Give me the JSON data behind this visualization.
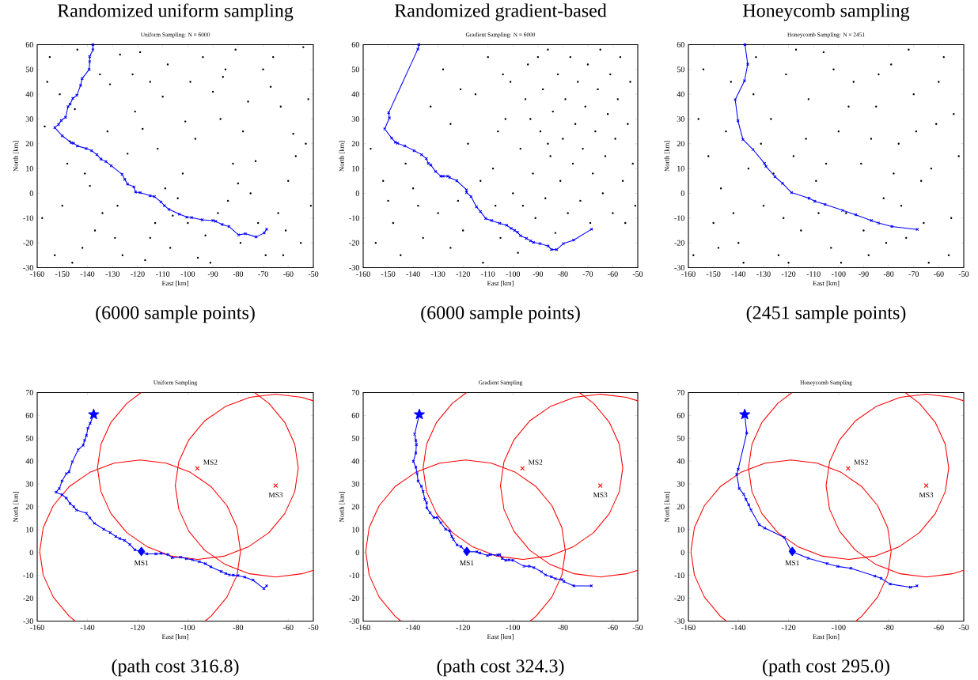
{
  "chart_data": [
    {
      "type": "scatter",
      "title": "Randomized uniform sampling",
      "subtitle": "Uniform Sampling: N = 6000",
      "xlabel": "East [km]",
      "ylabel": "North [km]",
      "xlim": [
        -160,
        -50
      ],
      "ylim": [
        -30,
        60
      ],
      "xticks": [
        -160,
        -150,
        -140,
        -130,
        -120,
        -110,
        -100,
        -90,
        -80,
        -70,
        -60,
        -50
      ],
      "yticks": [
        -30,
        -20,
        -10,
        0,
        10,
        20,
        30,
        40,
        50,
        60
      ],
      "annotations": [
        "(6000 sample points)"
      ],
      "series": [
        {
          "marker": "circle",
          "color": "#000000",
          "x": [
            -155,
            -148,
            -142,
            -135,
            -128,
            -121,
            -115,
            -108,
            -102,
            -96,
            -90,
            -84,
            -78,
            -72,
            -66,
            -60,
            -55,
            -52,
            -158,
            -151,
            -146,
            -139,
            -132,
            -126,
            -119,
            -112,
            -106,
            -99,
            -93,
            -87,
            -81,
            -75,
            -69,
            -63,
            -57,
            -51,
            -157,
            -150,
            -144,
            -137,
            -131,
            -124,
            -117,
            -110,
            -104,
            -97,
            -91,
            -85,
            -79,
            -73,
            -67,
            -61,
            -54,
            -153,
            -141,
            -129,
            -122,
            -113,
            -101,
            -94,
            -82,
            -76,
            -64,
            -58,
            -156,
            -134,
            -118,
            -107,
            -88,
            -70,
            -53,
            -147,
            -127,
            -109,
            -86,
            -62,
            -100,
            -145,
            -80,
            -115
          ],
          "values": [
            55,
            12,
            -22,
            48,
            -5,
            33,
            -18,
            52,
            8,
            -26,
            41,
            -3,
            25,
            -12,
            55,
            5,
            -20,
            38,
            -10,
            40,
            -28,
            3,
            25,
            -25,
            57,
            18,
            -9,
            45,
            -17,
            30,
            58,
            0,
            -25,
            35,
            15,
            -5,
            27,
            -5,
            58,
            -15,
            44,
            16,
            -27,
            39,
            -2,
            22,
            -28,
            50,
            -20,
            13,
            43,
            -15,
            59,
            -25,
            8,
            -18,
            48,
            -12,
            29,
            55,
            12,
            37,
            -8,
            24,
            45,
            -8,
            26,
            -22,
            -8,
            50,
            20,
            21,
            56,
            2,
            47,
            -25,
            -12,
            34,
            4,
            45
          ]
        },
        {
          "type": "line",
          "marker": "cross",
          "color": "#0000ff",
          "x": [
            -137.8,
            -137.8,
            -139.1,
            -139.1,
            -139.3,
            -142.1,
            -142.7,
            -144.2,
            -145.8,
            -146.9,
            -147.7,
            -148.7,
            -150.4,
            -151.5,
            -153,
            -150,
            -146.4,
            -145.5,
            -144,
            -140.5,
            -138.3,
            -136.2,
            -134.6,
            -132.6,
            -130.5,
            -126.2,
            -125.1,
            -124,
            -121.5,
            -120.8,
            -119,
            -115,
            -113.3,
            -110.7,
            -109.3,
            -107.5,
            -103.4,
            -100.4,
            -98.5,
            -94.3,
            -90,
            -88.9,
            -86.3,
            -83.6,
            -79.8,
            -77.1,
            -72.8,
            -69.6,
            -68.6
          ],
          "values": [
            60,
            57.9,
            55.2,
            53.1,
            50,
            46.3,
            43.6,
            39.6,
            38.3,
            36,
            35,
            30.7,
            29.4,
            27.8,
            26.5,
            23.2,
            20.4,
            20.2,
            19.1,
            18.1,
            17.2,
            15.6,
            13.8,
            12.8,
            11.1,
            7.7,
            5.6,
            3.7,
            2.6,
            0.5,
            0.3,
            -1,
            -1.3,
            -3.5,
            -5,
            -6.5,
            -8.4,
            -9.6,
            -9.8,
            -10.7,
            -11,
            -11.3,
            -12.6,
            -13.4,
            -16.8,
            -16.3,
            -17.6,
            -16,
            -14.5
          ]
        }
      ]
    },
    {
      "type": "scatter",
      "title": "Randomized gradient-based",
      "subtitle": "Gradient Sampling: N = 6000",
      "xlabel": "East [km]",
      "ylabel": "North [km]",
      "xlim": [
        -160,
        -50
      ],
      "ylim": [
        -30,
        60
      ],
      "xticks": [
        -160,
        -150,
        -140,
        -130,
        -120,
        -110,
        -100,
        -90,
        -80,
        -70,
        -60,
        -50
      ],
      "yticks": [
        -30,
        -20,
        -10,
        0,
        10,
        20,
        30,
        40,
        50,
        60
      ],
      "annotations": [
        "(6000 sample points)"
      ],
      "series": [
        {
          "marker": "circle",
          "color": "#000000",
          "x": [
            -157,
            -152,
            -148,
            -155,
            -145,
            -140,
            -136,
            -130,
            -133,
            -128,
            -125,
            -120,
            -118,
            -115,
            -112,
            -110,
            -108,
            -105,
            -103,
            -101,
            -100,
            -98,
            -97,
            -95,
            -94,
            -92,
            -91,
            -89,
            -88,
            -87,
            -86,
            -85,
            -84,
            -83,
            -82,
            -81,
            -80,
            -79,
            -78,
            -77,
            -76,
            -75,
            -74,
            -73,
            -72,
            -71,
            -70,
            -69,
            -68,
            -67,
            -66,
            -65,
            -64,
            -63,
            -62,
            -61,
            -60,
            -59,
            -58,
            -57,
            -56,
            -55,
            -54,
            -53,
            -52,
            -51,
            -106,
            -104,
            -96,
            -93,
            -90,
            -86,
            -107,
            -113,
            -122,
            -125,
            -138,
            -150,
            -143,
            -121
          ],
          "values": [
            18,
            5,
            -12,
            -20,
            -25,
            2,
            -18,
            -8,
            35,
            50,
            -22,
            -15,
            20,
            40,
            -28,
            55,
            10,
            -18,
            30,
            45,
            0,
            -24,
            18,
            38,
            52,
            8,
            -10,
            25,
            42,
            -2,
            58,
            15,
            33,
            -16,
            48,
            5,
            22,
            38,
            -8,
            55,
            12,
            28,
            45,
            -3,
            18,
            35,
            52,
            -12,
            8,
            25,
            42,
            58,
            0,
            15,
            32,
            48,
            -8,
            22,
            38,
            55,
            5,
            -12,
            28,
            45,
            12,
            -5,
            25,
            48,
            -5,
            30,
            55,
            20,
            -5,
            5,
            -3,
            28,
            -5,
            -3,
            12,
            42
          ]
        },
        {
          "type": "line",
          "marker": "cross",
          "color": "#0000ff",
          "x": [
            -137.7,
            -138.1,
            -149.8,
            -149.5,
            -151.4,
            -148.6,
            -147.1,
            -146.3,
            -143.3,
            -139.6,
            -136.6,
            -134.7,
            -133.9,
            -132.9,
            -131,
            -128.9,
            -128,
            -126.1,
            -125.4,
            -122.5,
            -118.6,
            -118.6,
            -116.8,
            -114.6,
            -113,
            -110.9,
            -108.5,
            -105.3,
            -102.5,
            -100.7,
            -99.3,
            -98.2,
            -97,
            -94.6,
            -92.9,
            -91.8,
            -89.2,
            -85.9,
            -84.6,
            -82.5,
            -79.8,
            -75.7,
            -68.5
          ],
          "values": [
            60,
            58.2,
            32.5,
            30.4,
            26,
            22.3,
            20.6,
            20.2,
            19.1,
            17.2,
            15.6,
            14,
            12.1,
            11.4,
            8.8,
            6.9,
            6.9,
            6.9,
            6.4,
            5.1,
            1.4,
            0.3,
            -1.3,
            -5.5,
            -7.4,
            -10.2,
            -11,
            -12.1,
            -12.9,
            -14.2,
            -15,
            -15.7,
            -17.1,
            -18.2,
            -19.2,
            -19.8,
            -20.3,
            -21.3,
            -22.7,
            -22.7,
            -20.3,
            -18.9,
            -14.5
          ]
        }
      ]
    },
    {
      "type": "scatter",
      "title": "Honeycomb sampling",
      "subtitle": "Honeycomb Sampling: N = 2451",
      "xlabel": "East [km]",
      "ylabel": "North [km]",
      "xlim": [
        -160,
        -50
      ],
      "ylim": [
        -30,
        60
      ],
      "xticks": [
        -160,
        -150,
        -140,
        -130,
        -120,
        -110,
        -100,
        -90,
        -80,
        -70,
        -60,
        -50
      ],
      "yticks": [
        -30,
        -20,
        -10,
        0,
        10,
        20,
        30,
        40,
        50,
        60
      ],
      "annotations": [
        "(2451 sample points)"
      ],
      "series": [
        {
          "marker": "circle",
          "color": "#000000",
          "x": [
            -158,
            -154,
            -150,
            -147,
            -143,
            -140,
            -136,
            -133,
            -130,
            -127,
            -124,
            -121,
            -118,
            -115,
            -112,
            -109,
            -106,
            -103,
            -100,
            -97,
            -94,
            -91,
            -88,
            -85,
            -82,
            -79,
            -76,
            -73,
            -70,
            -67,
            -64,
            -61,
            -58,
            -55,
            -52,
            -156,
            -152,
            -145,
            -138,
            -131,
            -126,
            -120,
            -113,
            -108,
            -102,
            -96,
            -90,
            -84,
            -78,
            -72,
            -66,
            -60,
            -54,
            -148,
            -134,
            -117,
            -99,
            -87,
            -75,
            -63,
            -56,
            -142,
            -122,
            -105,
            -81,
            -69
          ],
          "values": [
            -25,
            50,
            -12,
            2,
            45,
            -20,
            10,
            55,
            -5,
            30,
            -25,
            48,
            15,
            -15,
            38,
            5,
            57,
            -22,
            25,
            -8,
            45,
            12,
            -25,
            35,
            -2,
            52,
            20,
            -18,
            40,
            5,
            -28,
            28,
            55,
            -10,
            15,
            30,
            15,
            25,
            -28,
            20,
            8,
            -28,
            22,
            -8,
            50,
            35,
            -15,
            48,
            8,
            58,
            -12,
            45,
            32,
            -22,
            40,
            58,
            -28,
            22,
            -5,
            10,
            -25,
            -8,
            -10,
            12,
            -20,
            25
          ]
        },
        {
          "type": "line",
          "marker": "cross",
          "color": "#0000ff",
          "x": [
            -137.4,
            -136.3,
            -137.6,
            -141.3,
            -140.2,
            -138.2,
            -134.2,
            -129.6,
            -129,
            -125.4,
            -122.4,
            -118.8,
            -111.8,
            -109.5,
            -105.4,
            -98.4,
            -93.1,
            -86.9,
            -84.1,
            -78.7,
            -68.6
          ],
          "values": [
            60,
            52.1,
            45.4,
            37.8,
            29.2,
            21.7,
            17.7,
            12.1,
            10.9,
            6.7,
            4,
            0.3,
            -2,
            -3.2,
            -4.5,
            -6.9,
            -8.7,
            -11,
            -12,
            -13.4,
            -14.6
          ]
        }
      ]
    },
    {
      "type": "scatter",
      "title": "Uniform Sampling",
      "xlabel": "East [km]",
      "ylabel": "North [km]",
      "xlim": [
        -160,
        -50
      ],
      "ylim": [
        -30,
        70
      ],
      "xticks": [
        -160,
        -140,
        -120,
        -100,
        -80,
        -60,
        -50
      ],
      "yticks": [
        -30,
        -20,
        -10,
        0,
        10,
        20,
        30,
        40,
        50,
        60,
        70
      ],
      "annotations": [
        "(path cost 316.8)",
        {
          "text": "MS1",
          "x": -118.5,
          "y": 0.5
        },
        {
          "text": "MS2",
          "x": -96.2,
          "y": 36.8
        },
        {
          "text": "MS3",
          "x": -65,
          "y": 29.3
        }
      ],
      "series": [
        {
          "type": "line",
          "marker": "none",
          "color": "#ff0000",
          "x": [
            -93.1,
            -90.7,
            -84.4,
            -80.4,
            -79,
            -80.4,
            -84.4,
            -90.7,
            -99,
            -108.6,
            -119,
            -129.4,
            -139,
            -147.3,
            -153.6,
            -157.6,
            -159,
            -157.6,
            -153.6,
            -147.3,
            -144.9
          ],
          "values": [
            -30,
            -27.8,
            -19.5,
            -9.9,
            0.5,
            10.9,
            20.5,
            28.8,
            35.1,
            39.1,
            40.5,
            39.1,
            35.1,
            28.8,
            20.5,
            10.9,
            0.5,
            -9.9,
            -19.5,
            -27.8,
            -30
          ]
        },
        {
          "type": "line",
          "marker": "none",
          "color": "#ff0000",
          "x": [
            -118.6,
            -124.3,
            -130.6,
            -134.6,
            -136,
            -134.6,
            -130.6,
            -124.3,
            -116,
            -106.4,
            -96,
            -85.6,
            -76,
            -67.7,
            -61.4,
            -57.4,
            -56,
            -57.4,
            -61.4,
            -67.7,
            -73.4
          ],
          "values": [
            70,
            65.3,
            57,
            47.4,
            37,
            26.6,
            17,
            8.7,
            2.4,
            -1.6,
            -3,
            -1.6,
            2.4,
            8.7,
            17,
            26.6,
            37,
            47.4,
            57,
            65.3,
            70
          ]
        },
        {
          "type": "line",
          "marker": "none",
          "color": "#ff0000",
          "x": [
            -50,
            -54.6,
            -65,
            -75.4,
            -85,
            -93.3,
            -99.6,
            -103.6,
            -105,
            -103.6,
            -99.6,
            -93.3,
            -85,
            -75.4,
            -65,
            -54.6,
            -50
          ],
          "values": [
            66.4,
            67.9,
            69.3,
            67.9,
            63.9,
            57.6,
            49.3,
            39.7,
            29.3,
            18.9,
            9.3,
            1,
            -5.3,
            -9.3,
            -10.7,
            -9.3,
            -7.8
          ]
        },
        {
          "type": "line",
          "marker": "cross",
          "color": "#0000ff",
          "x": [
            -137.5,
            -138.9,
            -139.8,
            -140.4,
            -141.1,
            -141.7,
            -143.7,
            -146,
            -147.3,
            -148.4,
            -150.1,
            -151.2,
            -152.5,
            -150.1,
            -148.4,
            -146.9,
            -145.4,
            -144.4,
            -140.4,
            -139,
            -137.2,
            -133.5,
            -130.9,
            -128.7,
            -127.1,
            -125.2,
            -123.1,
            -121.1,
            -119.2,
            -116.3,
            -112.7,
            -110.7,
            -107.9,
            -106.2,
            -102.9,
            -100.6,
            -98.2,
            -95.4,
            -93,
            -90.8,
            -86.7,
            -84.9,
            -83.5,
            -81.9,
            -80,
            -77.3,
            -74,
            -69.7,
            -68.6
          ],
          "values": [
            60.4,
            56.5,
            54.4,
            51.2,
            49.1,
            46.9,
            44.9,
            39.7,
            35.3,
            34.5,
            31.3,
            28,
            26.4,
            25.3,
            23.8,
            21.4,
            20,
            18.6,
            17.2,
            15.1,
            12.8,
            10.2,
            8.7,
            7,
            6.1,
            5.3,
            3.5,
            1.2,
            null,
            -0.6,
            -0.6,
            -0.4,
            -0.9,
            -2.3,
            -2,
            -2.7,
            -3.2,
            -4,
            -4.9,
            -6.3,
            -8.3,
            -9.2,
            -9.8,
            -9.9,
            -10.1,
            -10.8,
            -12.1,
            -15.8,
            -14.6
          ]
        },
        {
          "type": "scatter",
          "marker": "star",
          "color": "#0000ff",
          "x": [
            -137.5
          ],
          "values": [
            60.4
          ]
        },
        {
          "type": "scatter",
          "marker": "diamond",
          "color": "#0000ff",
          "x": [
            -118.5
          ],
          "values": [
            0.5
          ]
        },
        {
          "type": "scatter",
          "marker": "cross",
          "color": "#ff0000",
          "x": [
            -96.2,
            -65
          ],
          "values": [
            36.8,
            29.3
          ]
        }
      ]
    },
    {
      "type": "scatter",
      "title": "Gradient Sampling",
      "xlabel": "East [km]",
      "ylabel": "North [km]",
      "xlim": [
        -160,
        -50
      ],
      "ylim": [
        -30,
        70
      ],
      "xticks": [
        -160,
        -140,
        -120,
        -100,
        -80,
        -60,
        -50
      ],
      "yticks": [
        -30,
        -20,
        -10,
        0,
        10,
        20,
        30,
        40,
        50,
        60,
        70
      ],
      "annotations": [
        "(path cost 324.3)",
        {
          "text": "MS1",
          "x": -118.5,
          "y": 0.5
        },
        {
          "text": "MS2",
          "x": -96.2,
          "y": 36.8
        },
        {
          "text": "MS3",
          "x": -65,
          "y": 29.3
        }
      ],
      "series": [
        {
          "type": "line",
          "marker": "none",
          "color": "#ff0000",
          "x": [
            -93.1,
            -90.7,
            -84.4,
            -80.4,
            -79,
            -80.4,
            -84.4,
            -90.7,
            -99,
            -108.6,
            -119,
            -129.4,
            -139,
            -147.3,
            -153.6,
            -157.6,
            -159,
            -157.6,
            -153.6,
            -147.3,
            -144.9
          ],
          "values": [
            -30,
            -27.8,
            -19.5,
            -9.9,
            0.5,
            10.9,
            20.5,
            28.8,
            35.1,
            39.1,
            40.5,
            39.1,
            35.1,
            28.8,
            20.5,
            10.9,
            0.5,
            -9.9,
            -19.5,
            -27.8,
            -30
          ]
        },
        {
          "type": "line",
          "marker": "none",
          "color": "#ff0000",
          "x": [
            -118.6,
            -124.3,
            -130.6,
            -134.6,
            -136,
            -134.6,
            -130.6,
            -124.3,
            -116,
            -106.4,
            -96,
            -85.6,
            -76,
            -67.7,
            -61.4,
            -57.4,
            -56,
            -57.4,
            -61.4,
            -67.7,
            -73.4
          ],
          "values": [
            70,
            65.3,
            57,
            47.4,
            37,
            26.6,
            17,
            8.7,
            2.4,
            -1.6,
            -3,
            -1.6,
            2.4,
            8.7,
            17,
            26.6,
            37,
            47.4,
            57,
            65.3,
            70
          ]
        },
        {
          "type": "line",
          "marker": "none",
          "color": "#ff0000",
          "x": [
            -50,
            -54.6,
            -65,
            -75.4,
            -85,
            -93.3,
            -99.6,
            -103.6,
            -105,
            -103.6,
            -99.6,
            -93.3,
            -85,
            -75.4,
            -65,
            -54.6,
            -50
          ],
          "values": [
            66.4,
            67.9,
            69.3,
            67.9,
            63.9,
            57.6,
            49.3,
            39.7,
            29.3,
            18.9,
            9.3,
            1,
            -5.3,
            -9.3,
            -10.7,
            -9.3,
            -7.8
          ]
        },
        {
          "type": "line",
          "marker": "cross",
          "color": "#0000ff",
          "x": [
            -137.5,
            -139.4,
            -138.9,
            -138.7,
            -138.9,
            -139.9,
            -138.9,
            -138.4,
            -138,
            -136.7,
            -136,
            -135.3,
            -134.6,
            -134.5,
            -133.2,
            -131.7,
            -130.3,
            -128.9,
            -127,
            -125.4,
            -124.5,
            -123.9,
            -122.4,
            -120.8,
            -118.8,
            -114.4,
            -113.3,
            -110.2,
            -109.1,
            -106.1,
            -105.3,
            -104.3,
            -102.9,
            -101.6,
            -100,
            -95.6,
            -93.5,
            -91.6,
            -88.6,
            -87,
            -84.6,
            -83,
            -80.4,
            -79.6,
            -75.6,
            -68.6
          ],
          "values": [
            60.4,
            51.8,
            49,
            47.2,
            43.6,
            39.9,
            37.3,
            34.5,
            31.3,
            29,
            26.7,
            23.2,
            21.8,
            19.5,
            17.4,
            15.3,
            15.3,
            13,
            10.2,
            9.5,
            7,
            5.8,
            3.3,
            2.6,
            0.4,
            0.3,
            -0.2,
            -1.3,
            -0.9,
            -1.1,
            -0.9,
            -2.6,
            -3.4,
            -3.2,
            -3.4,
            -6,
            -6,
            -6.6,
            -8.4,
            -9.8,
            -10.6,
            -11.5,
            -11.8,
            -12.7,
            -14.6,
            -14.6
          ]
        },
        {
          "type": "scatter",
          "marker": "star",
          "color": "#0000ff",
          "x": [
            -137.5
          ],
          "values": [
            60.4
          ]
        },
        {
          "type": "scatter",
          "marker": "diamond",
          "color": "#0000ff",
          "x": [
            -118.5
          ],
          "values": [
            0.5
          ]
        },
        {
          "type": "scatter",
          "marker": "cross",
          "color": "#ff0000",
          "x": [
            -96.2,
            -65
          ],
          "values": [
            36.8,
            29.3
          ]
        }
      ]
    },
    {
      "type": "scatter",
      "title": "Honeycomb Sampling",
      "xlabel": "East [km]",
      "ylabel": "North [km]",
      "xlim": [
        -160,
        -50
      ],
      "ylim": [
        -30,
        70
      ],
      "xticks": [
        -160,
        -140,
        -120,
        -100,
        -80,
        -60,
        -50
      ],
      "yticks": [
        -30,
        -20,
        -10,
        0,
        10,
        20,
        30,
        40,
        50,
        60,
        70
      ],
      "annotations": [
        "(path cost 295.0)",
        {
          "text": "MS1",
          "x": -118.5,
          "y": 0.5
        },
        {
          "text": "MS2",
          "x": -96.2,
          "y": 36.8
        },
        {
          "text": "MS3",
          "x": -65,
          "y": 29.3
        }
      ],
      "series": [
        {
          "type": "line",
          "marker": "none",
          "color": "#ff0000",
          "x": [
            -93.1,
            -90.7,
            -84.4,
            -80.4,
            -79,
            -80.4,
            -84.4,
            -90.7,
            -99,
            -108.6,
            -119,
            -129.4,
            -139,
            -147.3,
            -153.6,
            -157.6,
            -159,
            -157.6,
            -153.6,
            -147.3,
            -144.9
          ],
          "values": [
            -30,
            -27.8,
            -19.5,
            -9.9,
            0.5,
            10.9,
            20.5,
            28.8,
            35.1,
            39.1,
            40.5,
            39.1,
            35.1,
            28.8,
            20.5,
            10.9,
            0.5,
            -9.9,
            -19.5,
            -27.8,
            -30
          ]
        },
        {
          "type": "line",
          "marker": "none",
          "color": "#ff0000",
          "x": [
            -118.6,
            -124.3,
            -130.6,
            -134.6,
            -136,
            -134.6,
            -130.6,
            -124.3,
            -116,
            -106.4,
            -96,
            -85.6,
            -76,
            -67.7,
            -61.4,
            -57.4,
            -56,
            -57.4,
            -61.4,
            -67.7,
            -73.4
          ],
          "values": [
            70,
            65.3,
            57,
            47.4,
            37,
            26.6,
            17,
            8.7,
            2.4,
            -1.6,
            -3,
            -1.6,
            2.4,
            8.7,
            17,
            26.6,
            37,
            47.4,
            57,
            65.3,
            70
          ]
        },
        {
          "type": "line",
          "marker": "none",
          "color": "#ff0000",
          "x": [
            -50,
            -54.6,
            -65,
            -75.4,
            -85,
            -93.3,
            -99.6,
            -103.6,
            -105,
            -103.6,
            -99.6,
            -93.3,
            -85,
            -75.4,
            -65,
            -54.6,
            -50
          ],
          "values": [
            66.4,
            67.9,
            69.3,
            67.9,
            63.9,
            57.6,
            49.3,
            39.7,
            29.3,
            18.9,
            9.3,
            1,
            -5.3,
            -9.3,
            -10.7,
            -9.3,
            -7.8
          ]
        },
        {
          "type": "line",
          "marker": "cross",
          "color": "#0000ff",
          "x": [
            -137.5,
            -136.7,
            -140.1,
            -140.7,
            -139.7,
            -137.9,
            -137,
            -135.9,
            -135,
            -131.7,
            -129.5,
            -121.7,
            -118.9,
            -112.2,
            -104.6,
            -100.3,
            -95.1,
            -85.5,
            -83,
            -79.4,
            -71.3,
            -68.7
          ],
          "values": [
            60.4,
            52.3,
            36.5,
            34.2,
            28,
            25.5,
            23.2,
            20.9,
            18.6,
            12.2,
            10.7,
            6.6,
            0.5,
            -2.5,
            -4.8,
            -6.1,
            -6.9,
            -10.3,
            -11.3,
            -13.8,
            -15.2,
            -14.6
          ]
        },
        {
          "type": "scatter",
          "marker": "star",
          "color": "#0000ff",
          "x": [
            -137.5
          ],
          "values": [
            60.4
          ]
        },
        {
          "type": "scatter",
          "marker": "diamond",
          "color": "#0000ff",
          "x": [
            -118.5
          ],
          "values": [
            0.5
          ]
        },
        {
          "type": "scatter",
          "marker": "cross",
          "color": "#ff0000",
          "x": [
            -96.2,
            -65
          ],
          "values": [
            36.8,
            29.3
          ]
        }
      ]
    }
  ]
}
